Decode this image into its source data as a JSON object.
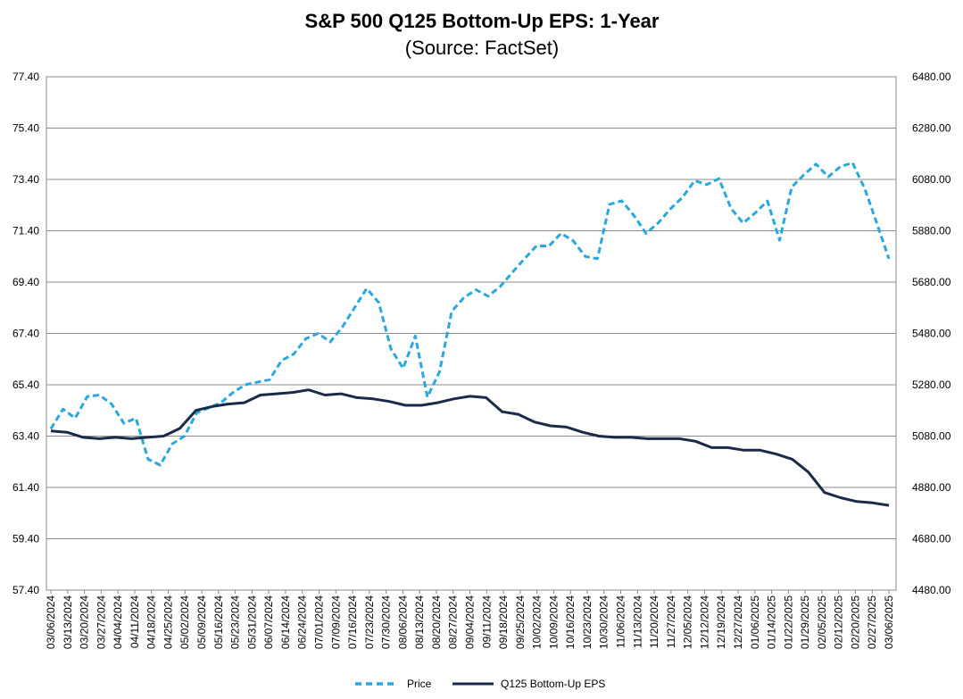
{
  "chart_data": {
    "type": "line",
    "title": "S&P 500 Q125 Bottom-Up EPS: 1-Year",
    "subtitle": "(Source: FactSet)",
    "left_axis": {
      "ticks": [
        "77.40",
        "75.40",
        "73.40",
        "71.40",
        "69.40",
        "67.40",
        "65.40",
        "63.40",
        "61.40",
        "59.40",
        "57.40"
      ],
      "ylim": [
        57.4,
        77.4
      ]
    },
    "right_axis": {
      "ticks": [
        "6480.00",
        "6280.00",
        "6080.00",
        "5880.00",
        "5680.00",
        "5480.00",
        "5280.00",
        "5080.00",
        "4880.00",
        "4680.00",
        "4480.00"
      ],
      "ylim": [
        4480,
        6480
      ]
    },
    "grid": "horizontal",
    "legend_position": "bottom",
    "x_tick_labels": [
      "03/06/2024",
      "03/13/2024",
      "03/20/2024",
      "03/27/2024",
      "04/04/2024",
      "04/11/2024",
      "04/18/2024",
      "04/25/2024",
      "05/02/2024",
      "05/09/2024",
      "05/16/2024",
      "05/23/2024",
      "05/31/2024",
      "06/07/2024",
      "06/14/2024",
      "06/24/2024",
      "07/01/2024",
      "07/09/2024",
      "07/16/2024",
      "07/23/2024",
      "07/30/2024",
      "08/06/2024",
      "08/13/2024",
      "08/20/2024",
      "08/27/2024",
      "09/04/2024",
      "09/11/2024",
      "09/18/2024",
      "09/25/2024",
      "10/02/2024",
      "10/09/2024",
      "10/16/2024",
      "10/23/2024",
      "10/30/2024",
      "11/06/2024",
      "11/13/2024",
      "11/20/2024",
      "11/27/2024",
      "12/05/2024",
      "12/12/2024",
      "12/19/2024",
      "12/27/2024",
      "01/06/2025",
      "01/14/2025",
      "01/22/2025",
      "01/29/2025",
      "02/05/2025",
      "02/12/2025",
      "02/20/2025",
      "02/27/2025",
      "03/06/2025"
    ],
    "series": [
      {
        "name": "Price",
        "axis": "right",
        "color": "#29a8e0",
        "style": "dashed",
        "values": [
          5108,
          5185,
          5150,
          5234,
          5240,
          5205,
          5130,
          5150,
          4990,
          4967,
          5050,
          5080,
          5170,
          5190,
          5210,
          5250,
          5280,
          5290,
          5300,
          5375,
          5400,
          5460,
          5480,
          5447,
          5505,
          5580,
          5655,
          5600,
          5420,
          5344,
          5470,
          5232,
          5331,
          5566,
          5619,
          5650,
          5625,
          5663,
          5718,
          5771,
          5822,
          5820,
          5870,
          5841,
          5780,
          5771,
          5983,
          5997,
          5940,
          5870,
          5910,
          5965,
          6010,
          6075,
          6060,
          6083,
          5967,
          5910,
          5950,
          5996,
          5843,
          6050,
          6098,
          6140,
          6090,
          6130,
          6145,
          6045,
          5910,
          5771
        ]
      },
      {
        "name": "Q125 Bottom-Up EPS",
        "axis": "left",
        "color": "#1b2a4a",
        "style": "solid",
        "values": [
          63.6,
          63.55,
          63.35,
          63.3,
          63.35,
          63.3,
          63.35,
          63.4,
          63.7,
          64.4,
          64.55,
          64.65,
          64.7,
          65.0,
          65.05,
          65.1,
          65.2,
          65.0,
          65.05,
          64.9,
          64.85,
          64.75,
          64.6,
          64.6,
          64.7,
          64.85,
          64.95,
          64.9,
          64.35,
          64.25,
          63.95,
          63.8,
          63.75,
          63.55,
          63.4,
          63.35,
          63.35,
          63.3,
          63.3,
          63.3,
          63.2,
          62.95,
          62.95,
          62.85,
          62.85,
          62.7,
          62.5,
          62.0,
          61.2,
          61.0,
          60.85,
          60.8,
          60.7
        ]
      }
    ]
  },
  "legend": {
    "price_label": "Price",
    "eps_label": "Q125 Bottom-Up EPS"
  }
}
